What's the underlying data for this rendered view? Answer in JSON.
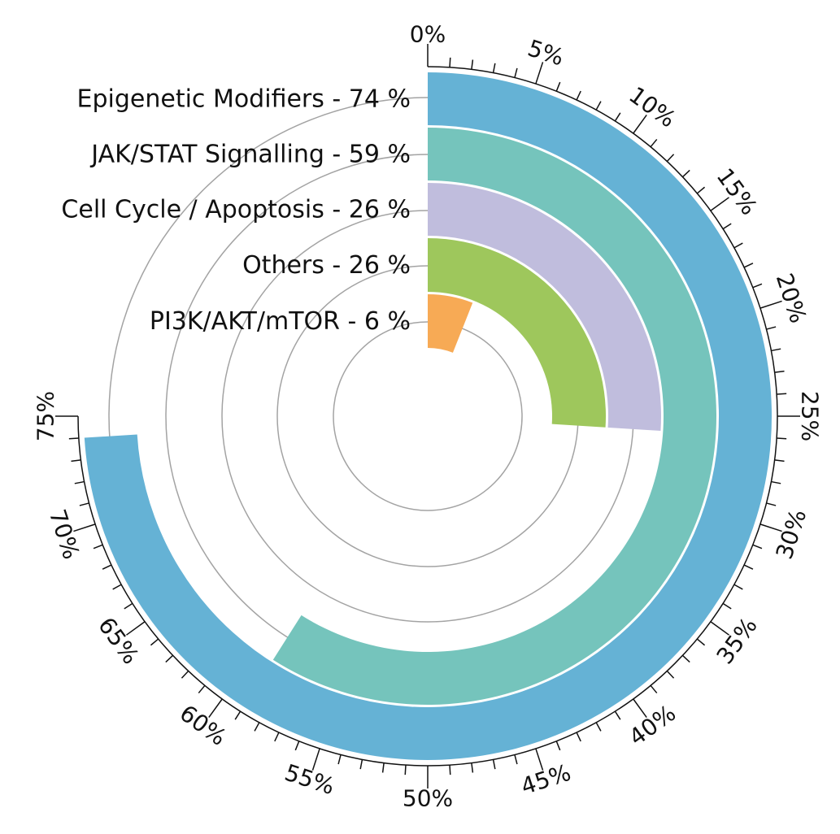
{
  "chart_data": {
    "type": "radial-bar",
    "scale_max": 75,
    "tick_step": 5,
    "minor_tick_step": 1,
    "tick_suffix": "%",
    "categories": [
      {
        "name": "Epigenetic Modifiers",
        "value": 74,
        "label": "Epigenetic Modifiers - 74 %",
        "color": "#65b2d5"
      },
      {
        "name": "JAK/STAT Signalling",
        "value": 59,
        "label": "JAK/STAT Signalling - 59 %",
        "color": "#75c4bc"
      },
      {
        "name": "Cell Cycle / Apoptosis",
        "value": 26,
        "label": "Cell Cycle / Apoptosis - 26 %",
        "color": "#c0bddd"
      },
      {
        "name": "Others",
        "value": 26,
        "label": "Others - 26 %",
        "color": "#9ec75c"
      },
      {
        "name": "PI3K/AKT/mTOR",
        "value": 6,
        "label": "PI3K/AKT/mTOR - 6 %",
        "color": "#f7aa55"
      }
    ]
  }
}
